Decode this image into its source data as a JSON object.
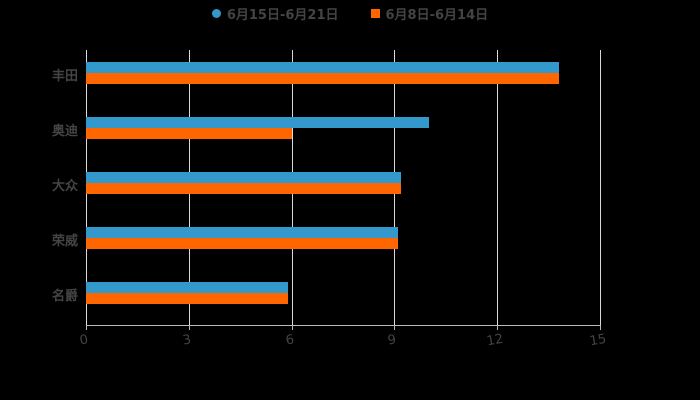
{
  "chart_data": {
    "type": "bar",
    "orientation": "horizontal",
    "categories": [
      "丰田",
      "奥迪",
      "大众",
      "荣威",
      "名爵"
    ],
    "series": [
      {
        "name": "6月15日-6月21日",
        "color": "#3399cc",
        "values": [
          13.8,
          10.0,
          9.2,
          9.1,
          5.9
        ]
      },
      {
        "name": "6月8日-6月14日",
        "color": "#ff6600",
        "values": [
          13.8,
          6.0,
          9.2,
          9.1,
          5.9
        ]
      }
    ],
    "title": "",
    "xlabel": "",
    "ylabel": "",
    "xlim": [
      0,
      15
    ],
    "xticks": [
      "0",
      "3",
      "6",
      "9",
      "12",
      "15"
    ],
    "grid": true,
    "legend_position": "top"
  },
  "legend": {
    "items": [
      {
        "label": "6月15日-6月21日",
        "color": "#3399cc",
        "shape": "circle"
      },
      {
        "label": "6月8日-6月14日",
        "color": "#ff6600",
        "shape": "square"
      }
    ]
  }
}
